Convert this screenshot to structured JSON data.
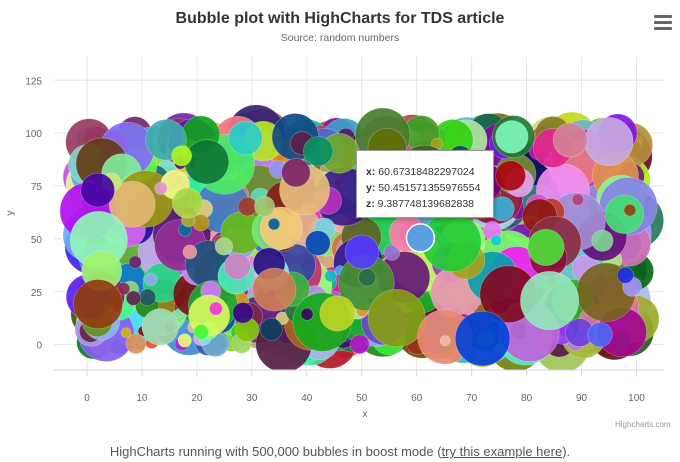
{
  "menu": {
    "icon": "hamburger-menu-icon"
  },
  "chart_data": {
    "type": "scatter",
    "variant": "bubble",
    "title": "Bubble plot with HighCharts for TDS article",
    "subtitle": "Source: random numbers",
    "xlabel": "x",
    "ylabel": "y",
    "xlim": [
      -6,
      105
    ],
    "ylim": [
      -12,
      136
    ],
    "x_ticks": [
      0,
      10,
      20,
      30,
      40,
      50,
      60,
      70,
      80,
      90,
      100
    ],
    "y_ticks": [
      0,
      25,
      50,
      75,
      100,
      125
    ],
    "grid": true,
    "bubble_count": "500,000",
    "hover_point": {
      "x": 60.67318482297024,
      "y": 50.451571355976554,
      "z": 9.387748139682838
    }
  },
  "tooltip": {
    "x_label": "x:",
    "x_value": "60.67318482297024",
    "y_label": "y:",
    "y_value": "50.451571355976554",
    "z_label": "z:",
    "z_value": "9.387748139682838"
  },
  "credits": "Highcharts.com",
  "caption": {
    "before": "HighCharts running with 500,000 bubbles in boost mode (",
    "link": "try this example here",
    "after": ")."
  }
}
